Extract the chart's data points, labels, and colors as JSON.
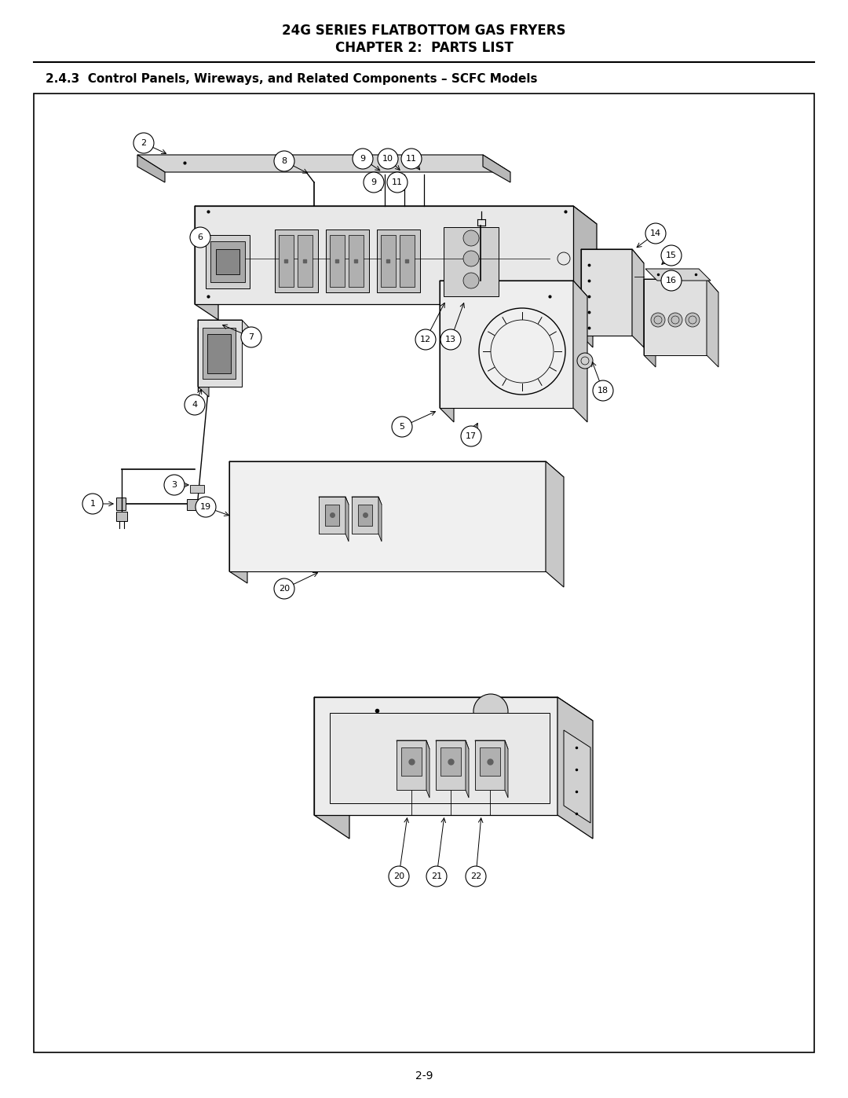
{
  "title_line1": "24G SERIES FLATBOTTOM GAS FRYERS",
  "title_line2": "CHAPTER 2:  PARTS LIST",
  "section_title": "2.4.3  Control Panels, Wireways, and Related Components – SCFC Models",
  "page_number": "2-9",
  "bg": "#ffffff",
  "title_fontsize": 12,
  "section_fontsize": 11,
  "page_num_fontsize": 10
}
